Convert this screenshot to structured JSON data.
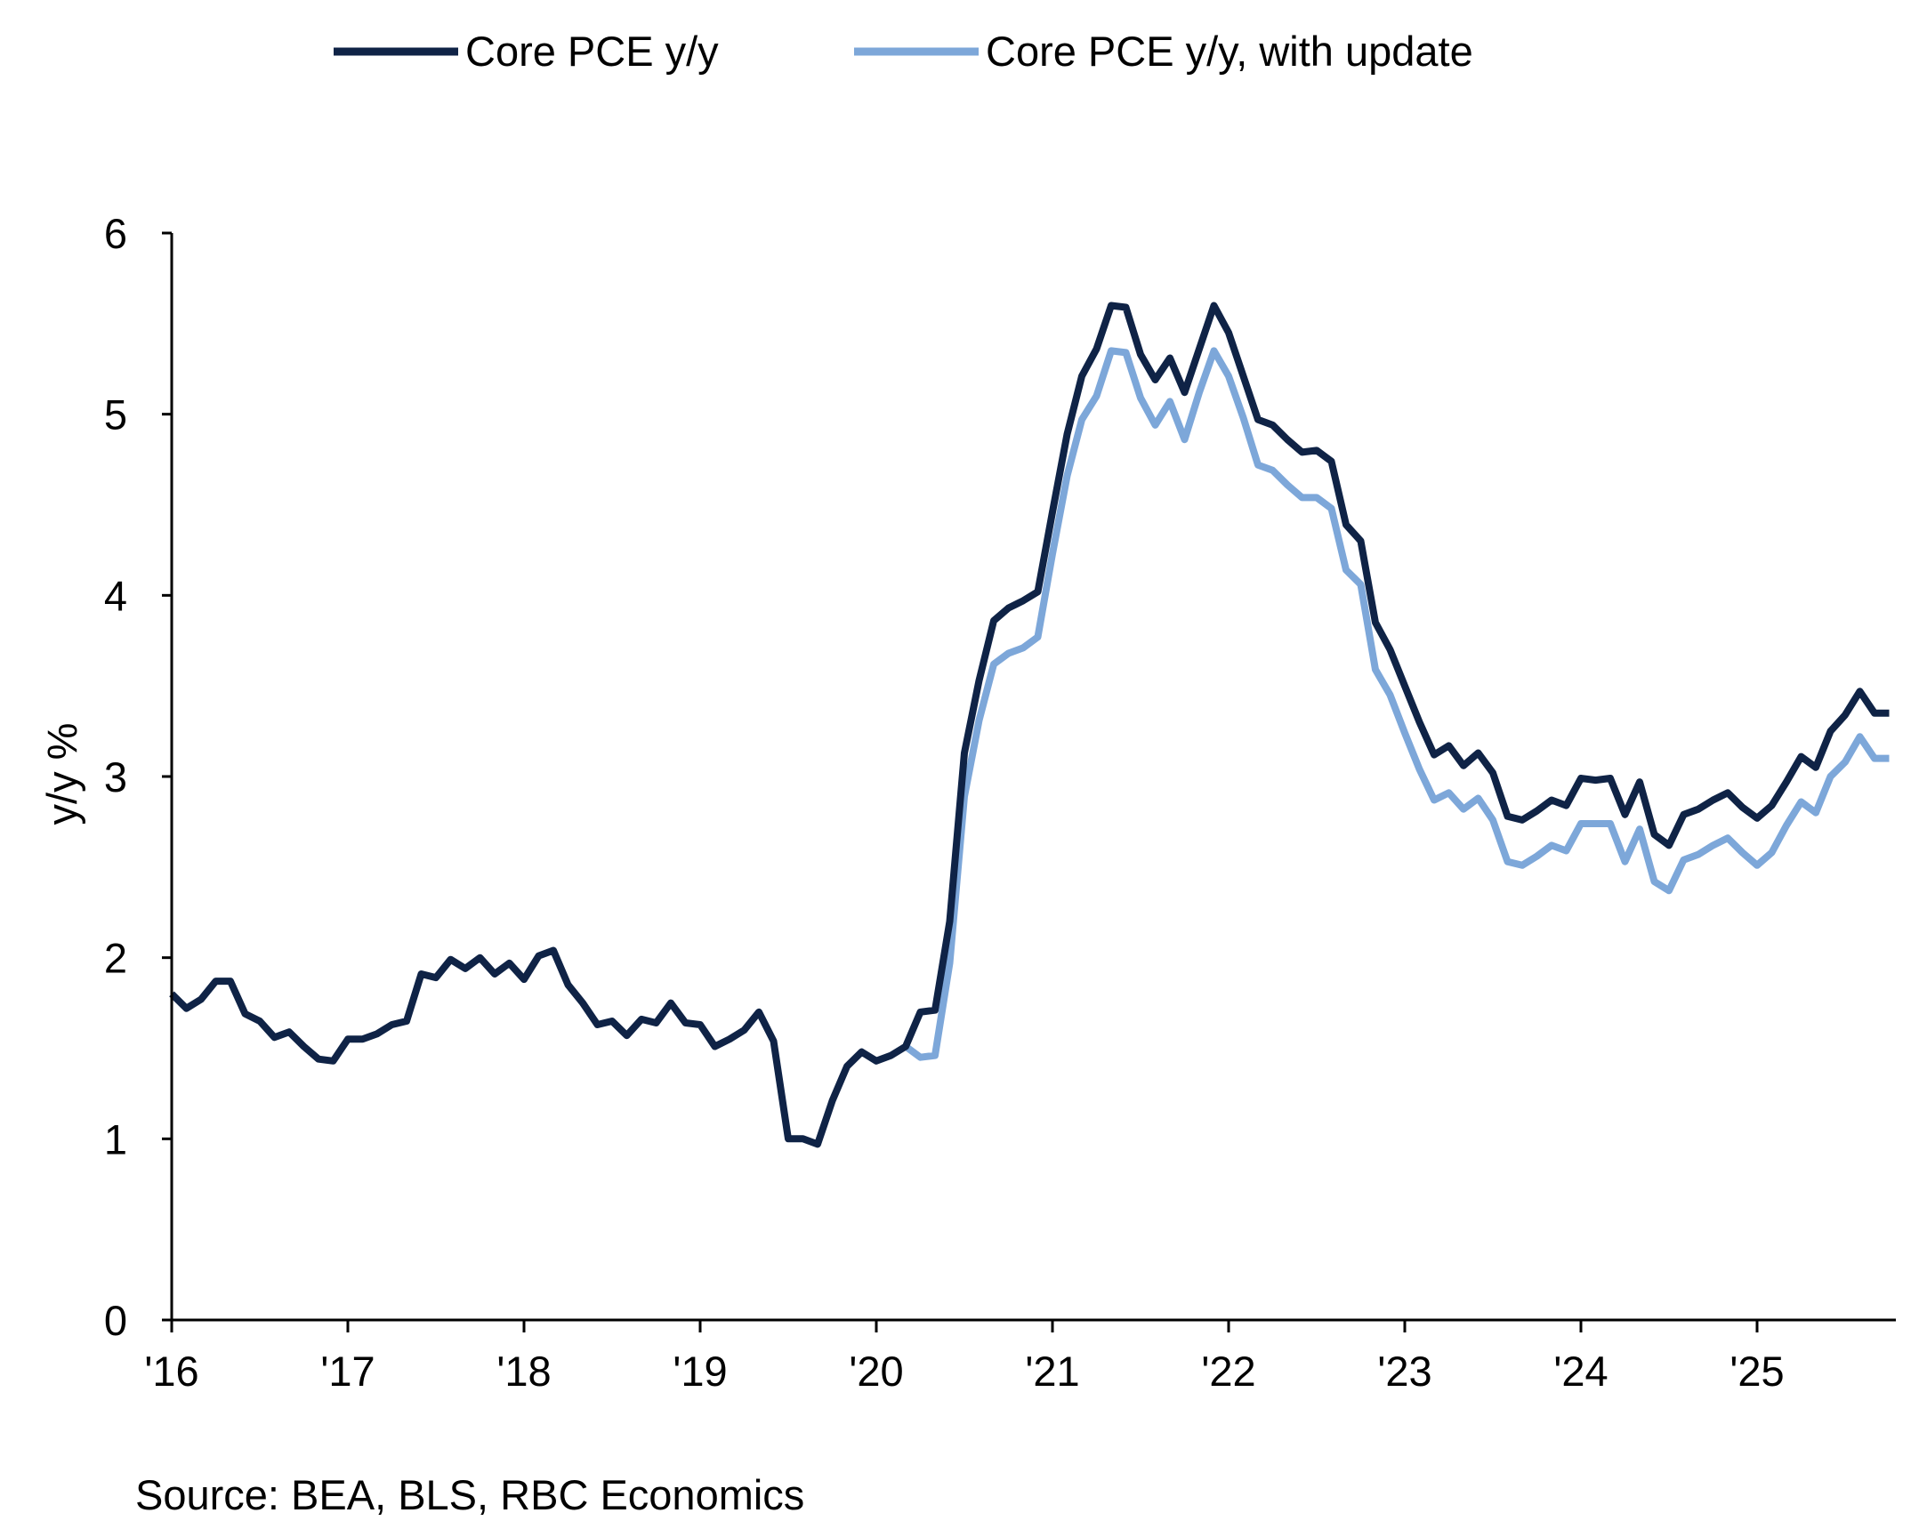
{
  "chart_data": {
    "type": "line",
    "ylabel": "y/y %",
    "xlabel": "",
    "ylim": [
      0,
      6
    ],
    "yticks": [
      0,
      1,
      2,
      3,
      4,
      5,
      6
    ],
    "xticks": [
      "'16",
      "'17",
      "'18",
      "'19",
      "'20",
      "'21",
      "'22",
      "'23",
      "'24",
      "'25"
    ],
    "x_start": "2016-01",
    "x_frequency": "monthly",
    "grid": false,
    "legend_position": "top",
    "source": "Source: BEA, BLS, RBC Economics",
    "series": [
      {
        "name": "Core PCE y/y",
        "color": "#0f2346",
        "start": "2016-01",
        "values": [
          1.8,
          1.72,
          1.77,
          1.87,
          1.87,
          1.69,
          1.65,
          1.56,
          1.59,
          1.51,
          1.44,
          1.43,
          1.55,
          1.55,
          1.58,
          1.63,
          1.65,
          1.91,
          1.89,
          1.99,
          1.94,
          2.0,
          1.91,
          1.97,
          1.88,
          2.01,
          2.04,
          1.85,
          1.75,
          1.63,
          1.65,
          1.57,
          1.66,
          1.64,
          1.75,
          1.64,
          1.63,
          1.51,
          1.55,
          1.6,
          1.7,
          1.54,
          1.0,
          1.0,
          0.97,
          1.21,
          1.4,
          1.48,
          1.43,
          1.46,
          1.51,
          1.7,
          1.71,
          2.2,
          3.13,
          3.53,
          3.86,
          3.93,
          3.97,
          4.02,
          4.46,
          4.89,
          5.21,
          5.36,
          5.6,
          5.59,
          5.33,
          5.19,
          5.31,
          5.12,
          5.36,
          5.6,
          5.45,
          5.21,
          4.97,
          4.94,
          4.86,
          4.79,
          4.8,
          4.74,
          4.39,
          4.3,
          3.85,
          3.7,
          3.5,
          3.3,
          3.12,
          3.17,
          3.06,
          3.13,
          3.02,
          2.78,
          2.76,
          2.81,
          2.87,
          2.84,
          2.99,
          2.98,
          2.99,
          2.79,
          2.97,
          2.68,
          2.62,
          2.79,
          2.82,
          2.87,
          2.91,
          2.83,
          2.77,
          2.84,
          2.97,
          3.11,
          3.05,
          3.25,
          3.34,
          3.47,
          3.35,
          3.35
        ]
      },
      {
        "name": "Core PCE y/y, with update",
        "color": "#7da7d9",
        "start": "2020-03",
        "values": [
          1.51,
          1.45,
          1.46,
          1.97,
          2.89,
          3.31,
          3.62,
          3.68,
          3.71,
          3.77,
          4.23,
          4.66,
          4.97,
          5.1,
          5.35,
          5.34,
          5.09,
          4.94,
          5.07,
          4.86,
          5.12,
          5.35,
          5.21,
          4.98,
          4.72,
          4.69,
          4.61,
          4.54,
          4.54,
          4.48,
          4.14,
          4.06,
          3.59,
          3.45,
          3.24,
          3.04,
          2.87,
          2.91,
          2.82,
          2.88,
          2.76,
          2.53,
          2.51,
          2.56,
          2.62,
          2.59,
          2.74,
          2.74,
          2.74,
          2.53,
          2.71,
          2.42,
          2.37,
          2.54,
          2.57,
          2.62,
          2.66,
          2.58,
          2.51,
          2.58,
          2.73,
          2.86,
          2.8,
          3.0,
          3.08,
          3.22,
          3.1,
          3.1
        ]
      }
    ]
  }
}
